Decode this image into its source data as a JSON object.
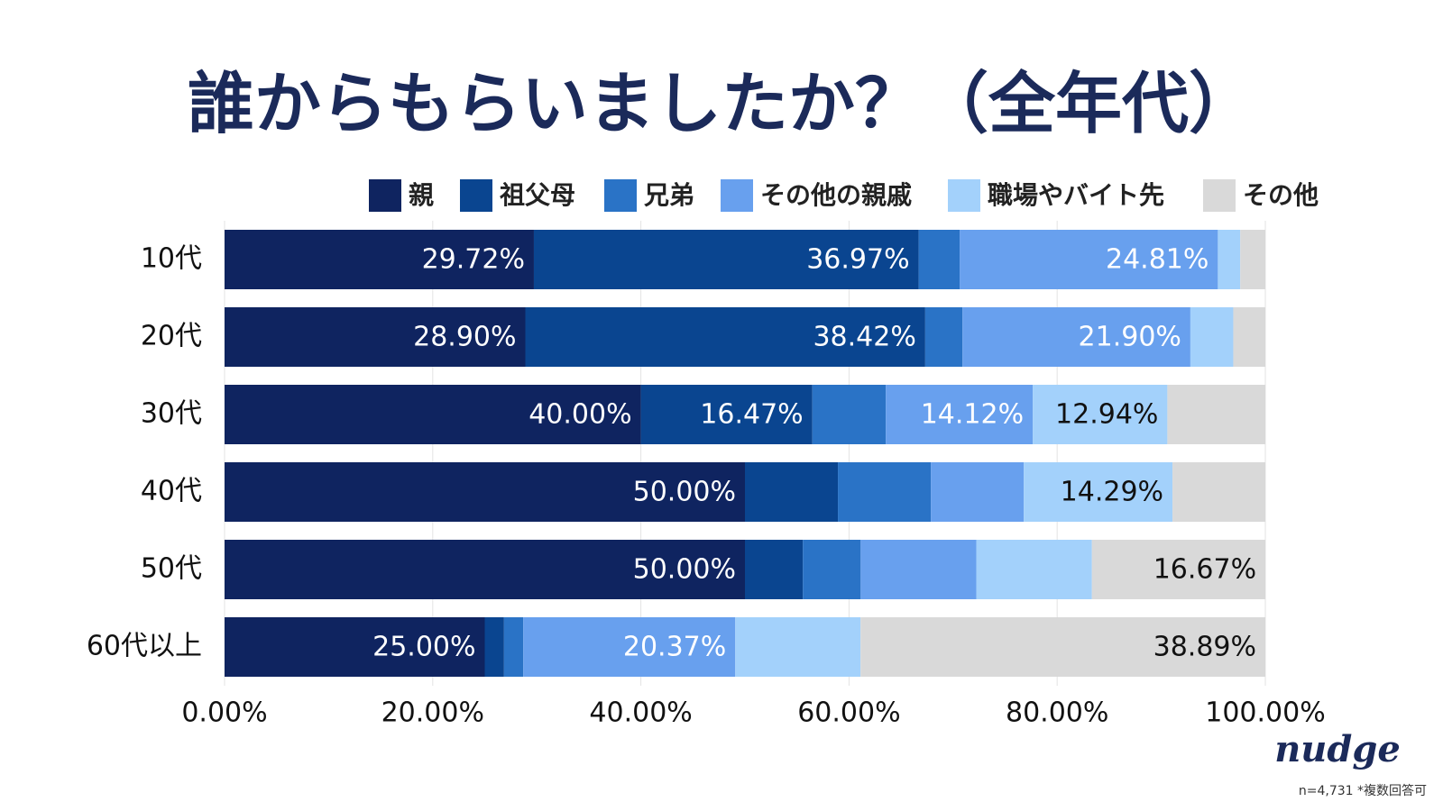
{
  "chart_data": {
    "type": "stacked-bar-horizontal",
    "title": "誰からもらいましたか？（全年代）",
    "categories": [
      "10代",
      "20代",
      "30代",
      "40代",
      "50代",
      "60代以上"
    ],
    "series": [
      {
        "name": "親",
        "color": "#0f2460",
        "label_color": "#ffffff",
        "values": [
          29.72,
          28.9,
          40.0,
          50.0,
          50.0,
          25.0
        ],
        "value_labels": [
          "29.72%",
          "28.90%",
          "40.00%",
          "50.00%",
          "50.00%",
          "25.00%"
        ]
      },
      {
        "name": "祖父母",
        "color": "#0a4590",
        "label_color": "#ffffff",
        "values": [
          36.97,
          38.42,
          16.47,
          8.93,
          5.56,
          1.85
        ],
        "value_labels": [
          "36.97%",
          "38.42%",
          "16.47%",
          null,
          null,
          null
        ]
      },
      {
        "name": "兄弟",
        "color": "#2a73c6",
        "label_color": "#ffffff",
        "values": [
          3.94,
          3.58,
          7.06,
          8.93,
          5.56,
          1.85
        ],
        "value_labels": [
          null,
          null,
          null,
          null,
          null,
          null
        ]
      },
      {
        "name": "その他の親戚",
        "color": "#68a0ee",
        "label_color": "#ffffff",
        "values": [
          24.81,
          21.9,
          14.12,
          8.93,
          11.11,
          20.37
        ],
        "value_labels": [
          "24.81%",
          "21.90%",
          "14.12%",
          null,
          null,
          "20.37%"
        ]
      },
      {
        "name": "職場やバイト先",
        "color": "#a3d1fb",
        "label_color": "#111111",
        "values": [
          2.15,
          4.12,
          12.94,
          14.29,
          11.11,
          12.04
        ],
        "value_labels": [
          null,
          null,
          "12.94%",
          "14.29%",
          null,
          null
        ]
      },
      {
        "name": "その他",
        "color": "#d9d9d9",
        "label_color": "#111111",
        "values": [
          2.41,
          3.08,
          9.41,
          8.92,
          16.67,
          38.89
        ],
        "value_labels": [
          null,
          null,
          null,
          null,
          "16.67%",
          "38.89%"
        ]
      }
    ],
    "xlim": [
      0,
      100
    ],
    "xticks": [
      {
        "value": 0,
        "label": "0.00%"
      },
      {
        "value": 20,
        "label": "20.00%"
      },
      {
        "value": 40,
        "label": "40.00%"
      },
      {
        "value": 60,
        "label": "60.00%"
      },
      {
        "value": 80,
        "label": "80.00%"
      },
      {
        "value": 100,
        "label": "100.00%"
      }
    ],
    "grid": true,
    "legend": "top",
    "logo": "nudge",
    "note": "n=4,731 *複数回答可"
  }
}
